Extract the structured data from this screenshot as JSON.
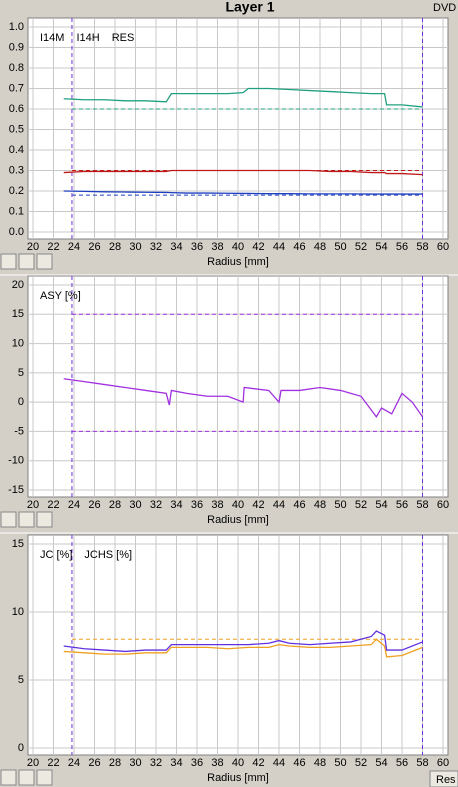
{
  "title": "Layer 1",
  "format": "DVD",
  "button": "Res",
  "chart_data": [
    {
      "type": "line",
      "xlabel": "Radius [mm]",
      "xlim": [
        20,
        60
      ],
      "xticks": [
        20,
        22,
        24,
        26,
        28,
        30,
        32,
        34,
        36,
        38,
        40,
        42,
        44,
        46,
        48,
        50,
        52,
        54,
        56,
        58,
        60
      ],
      "ylim": [
        0,
        1
      ],
      "yticks": [
        {
          "value": 0,
          "label": "0.0"
        },
        0.1,
        0.2,
        0.3,
        0.4,
        0.5,
        0.6,
        0.7,
        0.8,
        0.9,
        {
          "value": 1,
          "label": "1.0"
        }
      ],
      "grid": true,
      "x_markers": [
        23.8,
        58
      ],
      "limits": [
        {
          "value": 0.6,
          "color": "#20a080"
        },
        {
          "value": 0.3,
          "color": "#c01818"
        },
        {
          "value": 0.18,
          "color": "#1e3fc0"
        }
      ],
      "x": [
        23,
        25,
        27,
        29,
        31,
        33,
        33.5,
        35,
        37,
        39,
        40.5,
        41,
        43,
        45,
        47,
        49,
        51,
        53,
        54.3,
        54.5,
        56,
        58
      ],
      "series": [
        {
          "name": "I14M",
          "color": "#20a080",
          "values": [
            0.65,
            0.645,
            0.645,
            0.64,
            0.64,
            0.635,
            0.675,
            0.675,
            0.675,
            0.675,
            0.68,
            0.7,
            0.7,
            0.695,
            0.69,
            0.685,
            0.68,
            0.675,
            0.675,
            0.62,
            0.62,
            0.61
          ]
        },
        {
          "name": "I14H",
          "color": "#1e3fc0",
          "values": [
            0.2,
            0.198,
            0.196,
            0.195,
            0.194,
            0.193,
            0.192,
            0.19,
            0.19,
            0.189,
            0.188,
            0.188,
            0.187,
            0.187,
            0.186,
            0.186,
            0.186,
            0.185,
            0.185,
            0.185,
            0.185,
            0.185
          ]
        },
        {
          "name": "RES",
          "color": "#c01818",
          "values": [
            0.29,
            0.295,
            0.295,
            0.295,
            0.295,
            0.295,
            0.3,
            0.3,
            0.3,
            0.3,
            0.3,
            0.3,
            0.3,
            0.3,
            0.3,
            0.295,
            0.295,
            0.29,
            0.29,
            0.285,
            0.285,
            0.28
          ]
        }
      ]
    },
    {
      "type": "line",
      "xlabel": "Radius [mm]",
      "xlim": [
        20,
        60
      ],
      "xticks": [
        20,
        22,
        24,
        26,
        28,
        30,
        32,
        34,
        36,
        38,
        40,
        42,
        44,
        46,
        48,
        50,
        52,
        54,
        56,
        58,
        60
      ],
      "ylim": [
        -15,
        20
      ],
      "yticks": [
        -15,
        -10,
        -5,
        0,
        5,
        10,
        15,
        20
      ],
      "grid": true,
      "x_markers": [
        23.8,
        58
      ],
      "limits": [
        {
          "value": 15,
          "color": "#a030e0"
        },
        {
          "value": -5,
          "color": "#a030e0"
        }
      ],
      "x": [
        23,
        25,
        27,
        29,
        31,
        33,
        33.3,
        33.5,
        35,
        37,
        39,
        40.5,
        40.6,
        43,
        44,
        44.2,
        46,
        48,
        50,
        52,
        53.5,
        54,
        55,
        56,
        57,
        58
      ],
      "series": [
        {
          "name": "ASY [%]",
          "color": "#a030e0",
          "values": [
            4,
            3.5,
            3,
            2.5,
            2,
            1.5,
            -0.5,
            2,
            1.5,
            1,
            1,
            0,
            2.5,
            2,
            0,
            2,
            2,
            2.5,
            2,
            1,
            -2.5,
            -1,
            -2,
            1.5,
            0,
            -2.5
          ]
        }
      ]
    },
    {
      "type": "line",
      "xlabel": "Radius [mm]",
      "xlim": [
        20,
        60
      ],
      "xticks": [
        20,
        22,
        24,
        26,
        28,
        30,
        32,
        34,
        36,
        38,
        40,
        42,
        44,
        46,
        48,
        50,
        52,
        54,
        56,
        58,
        60
      ],
      "ylim": [
        0,
        15
      ],
      "yticks": [
        0,
        5,
        10,
        15
      ],
      "grid": true,
      "x_markers": [
        23.8,
        58
      ],
      "limits": [
        {
          "value": 8,
          "color": "#f0a020"
        }
      ],
      "x": [
        23,
        25,
        27,
        29,
        31,
        33,
        33.5,
        35,
        37,
        39,
        41,
        43,
        44,
        45,
        47,
        49,
        51,
        53,
        53.5,
        54.3,
        54.5,
        56,
        58
      ],
      "series": [
        {
          "name": "JC [%]",
          "color": "#f0a020",
          "values": [
            7.1,
            7,
            6.9,
            6.9,
            7,
            7,
            7.4,
            7.4,
            7.4,
            7.3,
            7.4,
            7.4,
            7.6,
            7.5,
            7.4,
            7.4,
            7.5,
            7.6,
            8.0,
            7.5,
            6.7,
            6.8,
            7.4
          ]
        },
        {
          "name": "JCHS [%]",
          "color": "#6030e0",
          "values": [
            7.5,
            7.3,
            7.2,
            7.1,
            7.2,
            7.2,
            7.6,
            7.6,
            7.6,
            7.6,
            7.6,
            7.7,
            7.9,
            7.7,
            7.6,
            7.7,
            7.8,
            8.2,
            8.6,
            8.3,
            7.2,
            7.2,
            7.8
          ]
        }
      ]
    }
  ]
}
